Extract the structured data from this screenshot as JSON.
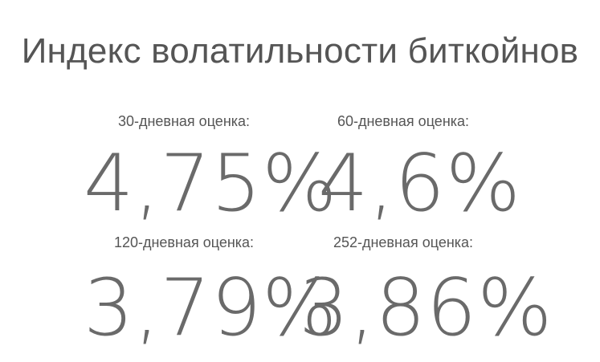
{
  "title": "Индекс волатильности биткойнов",
  "estimates": [
    {
      "label": "30-дневная оценка:",
      "value": "4,75%"
    },
    {
      "label": "60-дневная оценка:",
      "value": "4,6%"
    },
    {
      "label": "120-дневная оценка:",
      "value": "3,79%"
    },
    {
      "label": "252-дневная оценка:",
      "value": "3,86%"
    }
  ]
}
